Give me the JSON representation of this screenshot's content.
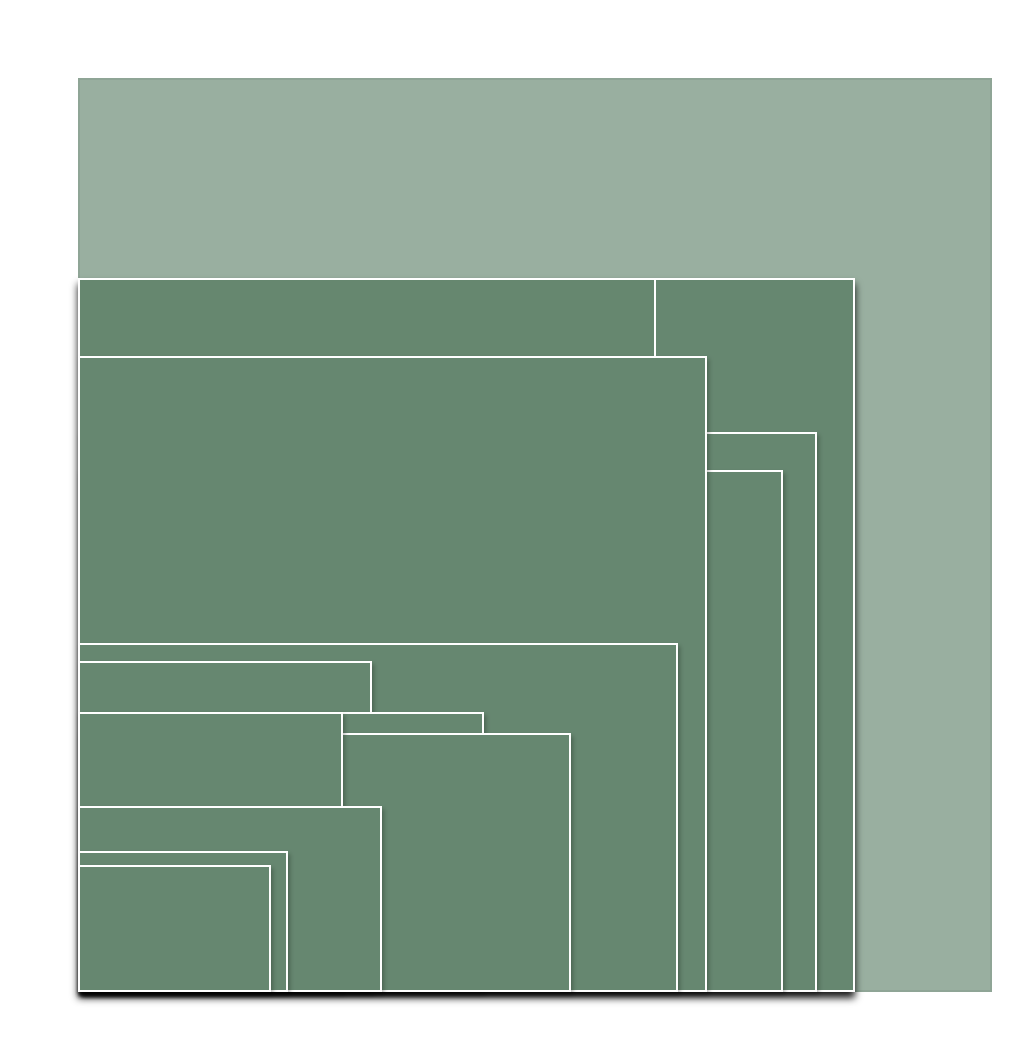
{
  "colors": {
    "background": "#ffffff",
    "outer_fill": "#99afa0",
    "outer_stroke": "#8fa596",
    "inner_fill": "#66876f",
    "inner_stroke": "#ffffff",
    "shadow": "#000000"
  },
  "diagram": {
    "type": "nested-rectangles",
    "layers": 14,
    "labels": []
  }
}
